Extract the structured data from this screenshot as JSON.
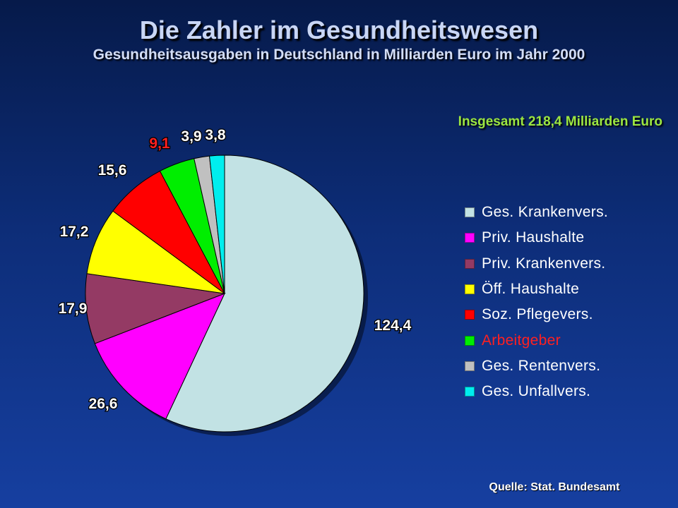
{
  "title": "Die Zahler im Gesundheitswesen",
  "subtitle": "Gesundheitsausgaben in Deutschland in Milliarden Euro im Jahr 2000",
  "total_label": "Insgesamt 218,4 Milliarden Euro",
  "source": "Quelle: Stat. Bundesamt",
  "chart_data": {
    "type": "pie",
    "title": "Die Zahler im Gesundheitswesen",
    "subtitle": "Gesundheitsausgaben in Deutschland in Milliarden Euro im Jahr 2000",
    "legend_position": "right",
    "slices": [
      {
        "name": "Ges. Krankenvers.",
        "value": 124.4,
        "label": "124,4",
        "color": "#c2e2e4",
        "label_color": "#ffffff"
      },
      {
        "name": "Priv. Haushalte",
        "value": 26.6,
        "label": "26,6",
        "color": "#ff00ff",
        "label_color": "#ffffff"
      },
      {
        "name": "Priv. Krankenvers.",
        "value": 17.9,
        "label": "17,9",
        "color": "#943a64",
        "label_color": "#ffffff"
      },
      {
        "name": "Öff. Haushalte",
        "value": 17.2,
        "label": "17,2",
        "color": "#ffff00",
        "label_color": "#ffffff"
      },
      {
        "name": "Soz. Pflegevers.",
        "value": 15.6,
        "label": "15,6",
        "color": "#ff0000",
        "label_color": "#ffffff"
      },
      {
        "name": "Arbeitgeber",
        "value": 9.1,
        "label": "9,1",
        "color": "#00ee00",
        "label_color": "#ff2020"
      },
      {
        "name": "Ges. Rentenvers.",
        "value": 3.9,
        "label": "3,9",
        "color": "#c0c0c0",
        "label_color": "#ffffff"
      },
      {
        "name": "Ges. Unfallvers.",
        "value": 3.8,
        "label": "3,8",
        "color": "#00eeee",
        "label_color": "#ffffff"
      }
    ]
  }
}
